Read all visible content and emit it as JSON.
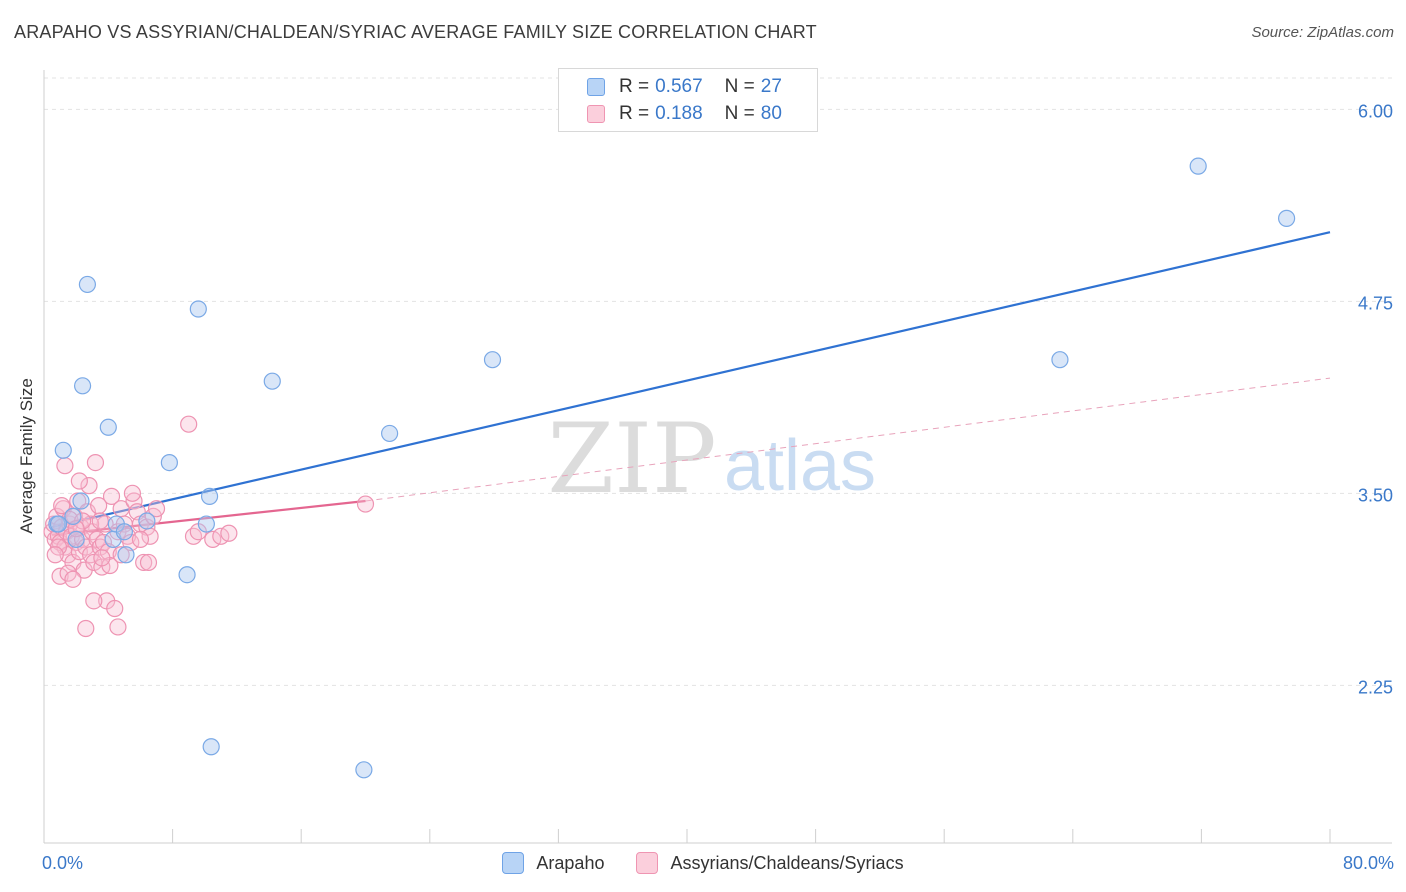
{
  "title": "ARAPAHO VS ASSYRIAN/CHALDEAN/SYRIAC AVERAGE FAMILY SIZE CORRELATION CHART",
  "source": "Source: ZipAtlas.com",
  "watermark": {
    "zip": "ZIP",
    "atlas": "atlas"
  },
  "legend_top": [
    {
      "r_label": "R =",
      "r_value": "0.567",
      "n_label": "N =",
      "n_value": "27"
    },
    {
      "r_label": "R =",
      "r_value": "0.188",
      "n_label": "N =",
      "n_value": "80"
    }
  ],
  "chart_data": {
    "type": "scatter",
    "title": "ARAPAHO VS ASSYRIAN/CHALDEAN/SYRIAC AVERAGE FAMILY SIZE CORRELATION CHART",
    "xlabel": "",
    "ylabel": "Average Family Size",
    "xlim": [
      0,
      80
    ],
    "ylim": [
      1.2,
      6.2
    ],
    "x_tick_labels": [
      "0.0%",
      "80.0%"
    ],
    "y_ticks": [
      2.25,
      3.5,
      4.75,
      6.0
    ],
    "y_tick_labels": [
      "2.25",
      "3.50",
      "4.75",
      "6.00"
    ],
    "grid": true,
    "colors": {
      "arapaho": "#4a8fe0",
      "assyrian": "#ee7fa5",
      "arapaho_line": "#2f72d2",
      "assyrian_line": "#e46690"
    },
    "series": [
      {
        "name": "Arapaho",
        "r": 0.567,
        "n": 27,
        "trend": {
          "x": [
            0.5,
            80
          ],
          "y": [
            3.28,
            5.2
          ]
        },
        "points": [
          [
            0.8,
            3.3
          ],
          [
            0.9,
            3.3
          ],
          [
            1.2,
            3.78
          ],
          [
            1.8,
            3.35
          ],
          [
            2.0,
            3.2
          ],
          [
            2.3,
            3.45
          ],
          [
            2.4,
            4.2
          ],
          [
            2.7,
            4.86
          ],
          [
            4.0,
            3.93
          ],
          [
            4.3,
            3.2
          ],
          [
            4.5,
            3.3
          ],
          [
            5.0,
            3.25
          ],
          [
            5.1,
            3.1
          ],
          [
            6.4,
            3.32
          ],
          [
            7.8,
            3.7
          ],
          [
            8.9,
            2.97
          ],
          [
            9.6,
            4.7
          ],
          [
            10.1,
            3.3
          ],
          [
            10.3,
            3.48
          ],
          [
            10.4,
            1.85
          ],
          [
            14.2,
            4.23
          ],
          [
            19.9,
            1.7
          ],
          [
            21.5,
            3.89
          ],
          [
            27.9,
            4.37
          ],
          [
            63.2,
            4.37
          ],
          [
            71.8,
            5.63
          ],
          [
            77.3,
            5.29
          ]
        ]
      },
      {
        "name": "Assyrians/Chaldeans/Syriacs",
        "r": 0.188,
        "n": 80,
        "trend": {
          "x": [
            0.5,
            20
          ],
          "y": [
            3.23,
            3.45
          ],
          "dashed_to": {
            "x": 80,
            "y": 4.25
          }
        },
        "points": [
          [
            0.5,
            3.25
          ],
          [
            0.6,
            3.3
          ],
          [
            0.7,
            3.2
          ],
          [
            0.8,
            3.35
          ],
          [
            0.9,
            3.22
          ],
          [
            1.0,
            3.18
          ],
          [
            1.1,
            3.28
          ],
          [
            1.2,
            3.4
          ],
          [
            1.3,
            3.15
          ],
          [
            1.4,
            3.25
          ],
          [
            1.5,
            3.1
          ],
          [
            1.6,
            3.3
          ],
          [
            1.7,
            3.22
          ],
          [
            1.8,
            3.05
          ],
          [
            1.9,
            3.35
          ],
          [
            2.0,
            3.18
          ],
          [
            2.1,
            3.45
          ],
          [
            2.2,
            3.12
          ],
          [
            2.3,
            3.28
          ],
          [
            2.4,
            3.2
          ],
          [
            2.5,
            3.0
          ],
          [
            2.6,
            3.15
          ],
          [
            2.7,
            3.38
          ],
          [
            2.8,
            3.55
          ],
          [
            2.9,
            3.1
          ],
          [
            3.0,
            3.25
          ],
          [
            3.1,
            3.05
          ],
          [
            3.2,
            3.7
          ],
          [
            3.3,
            3.2
          ],
          [
            3.4,
            3.42
          ],
          [
            3.5,
            3.15
          ],
          [
            3.6,
            3.02
          ],
          [
            3.7,
            3.18
          ],
          [
            3.8,
            3.3
          ],
          [
            3.9,
            2.8
          ],
          [
            4.0,
            3.12
          ],
          [
            4.2,
            3.48
          ],
          [
            4.4,
            2.75
          ],
          [
            4.6,
            3.25
          ],
          [
            4.8,
            3.4
          ],
          [
            5.0,
            3.3
          ],
          [
            5.2,
            3.22
          ],
          [
            5.4,
            3.18
          ],
          [
            5.6,
            3.45
          ],
          [
            5.8,
            3.38
          ],
          [
            6.0,
            3.3
          ],
          [
            6.2,
            3.05
          ],
          [
            6.4,
            3.28
          ],
          [
            6.6,
            3.22
          ],
          [
            6.8,
            3.35
          ],
          [
            7.0,
            3.4
          ],
          [
            9.0,
            3.95
          ],
          [
            9.3,
            3.22
          ],
          [
            9.6,
            3.25
          ],
          [
            10.5,
            3.2
          ],
          [
            11.0,
            3.22
          ],
          [
            11.5,
            3.24
          ],
          [
            20.0,
            3.43
          ],
          [
            1.0,
            2.96
          ],
          [
            1.5,
            2.98
          ],
          [
            1.8,
            2.94
          ],
          [
            2.6,
            2.62
          ],
          [
            4.6,
            2.63
          ],
          [
            3.1,
            2.8
          ],
          [
            4.1,
            3.03
          ],
          [
            0.9,
            3.15
          ],
          [
            1.3,
            3.68
          ],
          [
            2.9,
            3.3
          ],
          [
            3.5,
            3.32
          ],
          [
            4.8,
            3.1
          ],
          [
            5.5,
            3.5
          ],
          [
            6.0,
            3.2
          ],
          [
            3.6,
            3.08
          ],
          [
            2.2,
            3.58
          ],
          [
            1.6,
            3.33
          ],
          [
            0.7,
            3.1
          ],
          [
            1.1,
            3.42
          ],
          [
            2.4,
            3.32
          ],
          [
            2.0,
            3.27
          ],
          [
            6.5,
            3.05
          ]
        ]
      }
    ]
  },
  "legend_bottom": [
    "Arapaho",
    "Assyrians/Chaldeans/Syriacs"
  ]
}
